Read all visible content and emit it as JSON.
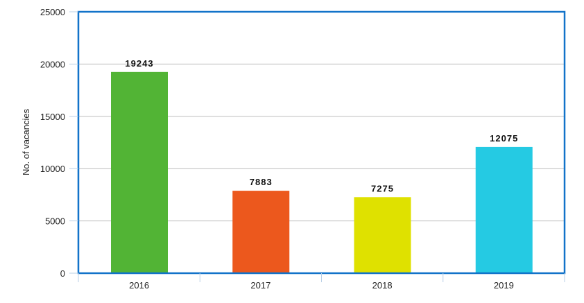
{
  "chart_data": {
    "type": "bar",
    "title": "",
    "xlabel": "",
    "ylabel": "No. of vacancies",
    "categories": [
      "2016",
      "2017",
      "2018",
      "2019"
    ],
    "values": [
      19243,
      7883,
      7275,
      12075
    ],
    "data_labels": [
      "19243",
      "7883",
      "7275",
      "12075"
    ],
    "colors": [
      "#52b435",
      "#ec581d",
      "#dfe100",
      "#25cae3"
    ],
    "ylim": [
      0,
      25000
    ],
    "yticks": [
      0,
      5000,
      10000,
      15000,
      20000,
      25000
    ],
    "ytick_labels": [
      "0",
      "5000",
      "10000",
      "15000",
      "20000",
      "25000"
    ],
    "grid": true,
    "legend": "none",
    "frame_color": "#1273c9"
  }
}
